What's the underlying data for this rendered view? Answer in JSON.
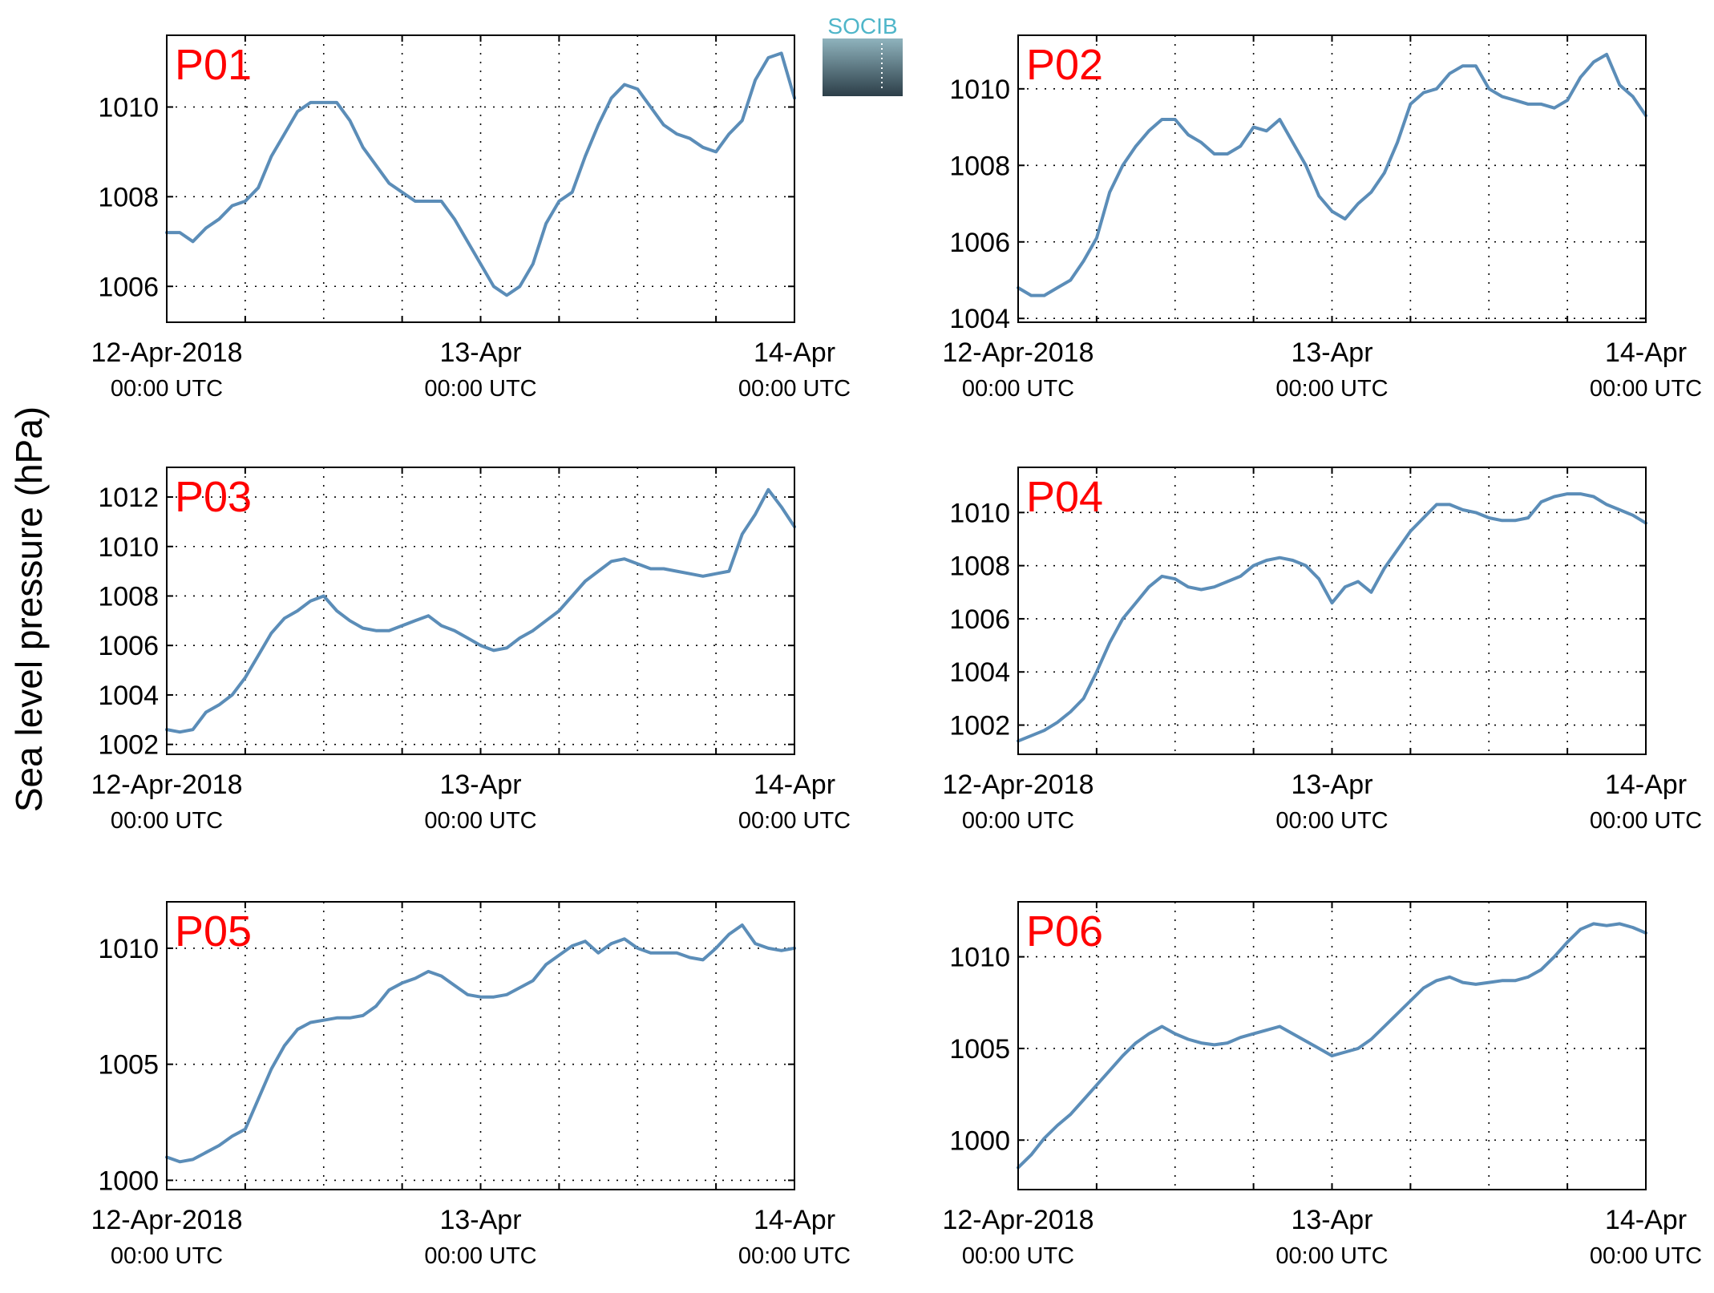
{
  "figure": {
    "ylabel": "Sea level pressure (hPa)",
    "logo_text": "SOCIB"
  },
  "colors": {
    "line": "#5b8db8",
    "station_label": "#ff0000",
    "grid": "#000000",
    "axis": "#000000",
    "logo_text": "#4fb6c9",
    "logo_top": "#8fb3bd",
    "logo_bottom": "#2c3e48"
  },
  "x_ticks": [
    {
      "main": "12-Apr-2018",
      "sub": "00:00 UTC"
    },
    {
      "main": "13-Apr",
      "sub": "00:00 UTC"
    },
    {
      "main": "14-Apr",
      "sub": "00:00 UTC"
    }
  ],
  "chart_data": [
    {
      "type": "line",
      "title": "P01",
      "xlabel": "",
      "ylabel": "Sea level pressure (hPa)",
      "xlim": [
        "2018-04-12 00:00",
        "2018-04-14 00:00"
      ],
      "ylim": [
        1005.2,
        1011.6
      ],
      "yticks": [
        1006,
        1008,
        1010
      ],
      "grid": true,
      "x_hours": [
        0,
        1,
        2,
        3,
        4,
        5,
        6,
        7,
        8,
        9,
        10,
        11,
        12,
        13,
        14,
        15,
        16,
        17,
        18,
        19,
        20,
        21,
        22,
        23,
        24,
        25,
        26,
        27,
        28,
        29,
        30,
        31,
        32,
        33,
        34,
        35,
        36,
        37,
        38,
        39,
        40,
        41,
        42,
        43,
        44,
        45,
        46,
        47,
        48
      ],
      "values": [
        1007.2,
        1007.2,
        1007.0,
        1007.3,
        1007.5,
        1007.8,
        1007.9,
        1008.2,
        1008.9,
        1009.4,
        1009.9,
        1010.1,
        1010.1,
        1010.1,
        1009.7,
        1009.1,
        1008.7,
        1008.3,
        1008.1,
        1007.9,
        1007.9,
        1007.9,
        1007.5,
        1007.0,
        1006.5,
        1006.0,
        1005.8,
        1006.0,
        1006.5,
        1007.4,
        1007.9,
        1008.1,
        1008.9,
        1009.6,
        1010.2,
        1010.5,
        1010.4,
        1010.0,
        1009.6,
        1009.4,
        1009.3,
        1009.1,
        1009.0,
        1009.4,
        1009.7,
        1010.6,
        1011.1,
        1011.2,
        1010.2
      ]
    },
    {
      "type": "line",
      "title": "P02",
      "xlabel": "",
      "ylabel": "Sea level pressure (hPa)",
      "xlim": [
        "2018-04-12 00:00",
        "2018-04-14 00:00"
      ],
      "ylim": [
        1003.9,
        1011.4
      ],
      "yticks": [
        1004,
        1006,
        1008,
        1010
      ],
      "grid": true,
      "x_hours": [
        0,
        1,
        2,
        3,
        4,
        5,
        6,
        7,
        8,
        9,
        10,
        11,
        12,
        13,
        14,
        15,
        16,
        17,
        18,
        19,
        20,
        21,
        22,
        23,
        24,
        25,
        26,
        27,
        28,
        29,
        30,
        31,
        32,
        33,
        34,
        35,
        36,
        37,
        38,
        39,
        40,
        41,
        42,
        43,
        44,
        45,
        46,
        47,
        48
      ],
      "values": [
        1004.8,
        1004.6,
        1004.6,
        1004.8,
        1005.0,
        1005.5,
        1006.1,
        1007.3,
        1008.0,
        1008.5,
        1008.9,
        1009.2,
        1009.2,
        1008.8,
        1008.6,
        1008.3,
        1008.3,
        1008.5,
        1009.0,
        1008.9,
        1009.2,
        1008.6,
        1008.0,
        1007.2,
        1006.8,
        1006.6,
        1007.0,
        1007.3,
        1007.8,
        1008.6,
        1009.6,
        1009.9,
        1010.0,
        1010.4,
        1010.6,
        1010.6,
        1010.0,
        1009.8,
        1009.7,
        1009.6,
        1009.6,
        1009.5,
        1009.7,
        1010.3,
        1010.7,
        1010.9,
        1010.1,
        1009.8,
        1009.3
      ]
    },
    {
      "type": "line",
      "title": "P03",
      "xlabel": "",
      "ylabel": "Sea level pressure (hPa)",
      "xlim": [
        "2018-04-12 00:00",
        "2018-04-14 00:00"
      ],
      "ylim": [
        1001.6,
        1013.2
      ],
      "yticks": [
        1002,
        1004,
        1006,
        1008,
        1010,
        1012
      ],
      "grid": true,
      "x_hours": [
        0,
        1,
        2,
        3,
        4,
        5,
        6,
        7,
        8,
        9,
        10,
        11,
        12,
        13,
        14,
        15,
        16,
        17,
        18,
        19,
        20,
        21,
        22,
        23,
        24,
        25,
        26,
        27,
        28,
        29,
        30,
        31,
        32,
        33,
        34,
        35,
        36,
        37,
        38,
        39,
        40,
        41,
        42,
        43,
        44,
        45,
        46,
        47,
        48
      ],
      "values": [
        1002.6,
        1002.5,
        1002.6,
        1003.3,
        1003.6,
        1004.0,
        1004.7,
        1005.6,
        1006.5,
        1007.1,
        1007.4,
        1007.8,
        1008.0,
        1007.4,
        1007.0,
        1006.7,
        1006.6,
        1006.6,
        1006.8,
        1007.0,
        1007.2,
        1006.8,
        1006.6,
        1006.3,
        1006.0,
        1005.8,
        1005.9,
        1006.3,
        1006.6,
        1007.0,
        1007.4,
        1008.0,
        1008.6,
        1009.0,
        1009.4,
        1009.5,
        1009.3,
        1009.1,
        1009.1,
        1009.0,
        1008.9,
        1008.8,
        1008.9,
        1009.0,
        1010.5,
        1011.3,
        1012.3,
        1011.6,
        1010.8
      ]
    },
    {
      "type": "line",
      "title": "P04",
      "xlabel": "",
      "ylabel": "Sea level pressure (hPa)",
      "xlim": [
        "2018-04-12 00:00",
        "2018-04-14 00:00"
      ],
      "ylim": [
        1000.9,
        1011.7
      ],
      "yticks": [
        1002,
        1004,
        1006,
        1008,
        1010
      ],
      "grid": true,
      "x_hours": [
        0,
        1,
        2,
        3,
        4,
        5,
        6,
        7,
        8,
        9,
        10,
        11,
        12,
        13,
        14,
        15,
        16,
        17,
        18,
        19,
        20,
        21,
        22,
        23,
        24,
        25,
        26,
        27,
        28,
        29,
        30,
        31,
        32,
        33,
        34,
        35,
        36,
        37,
        38,
        39,
        40,
        41,
        42,
        43,
        44,
        45,
        46,
        47,
        48
      ],
      "values": [
        1001.4,
        1001.6,
        1001.8,
        1002.1,
        1002.5,
        1003.0,
        1004.0,
        1005.1,
        1006.0,
        1006.6,
        1007.2,
        1007.6,
        1007.5,
        1007.2,
        1007.1,
        1007.2,
        1007.4,
        1007.6,
        1008.0,
        1008.2,
        1008.3,
        1008.2,
        1008.0,
        1007.5,
        1006.6,
        1007.2,
        1007.4,
        1007.0,
        1007.9,
        1008.6,
        1009.3,
        1009.8,
        1010.3,
        1010.3,
        1010.1,
        1010.0,
        1009.8,
        1009.7,
        1009.7,
        1009.8,
        1010.4,
        1010.6,
        1010.7,
        1010.7,
        1010.6,
        1010.3,
        1010.1,
        1009.9,
        1009.6
      ]
    },
    {
      "type": "line",
      "title": "P05",
      "xlabel": "",
      "ylabel": "Sea level pressure (hPa)",
      "xlim": [
        "2018-04-12 00:00",
        "2018-04-14 00:00"
      ],
      "ylim": [
        999.6,
        1012.0
      ],
      "yticks": [
        1000,
        1005,
        1010
      ],
      "grid": true,
      "x_hours": [
        0,
        1,
        2,
        3,
        4,
        5,
        6,
        7,
        8,
        9,
        10,
        11,
        12,
        13,
        14,
        15,
        16,
        17,
        18,
        19,
        20,
        21,
        22,
        23,
        24,
        25,
        26,
        27,
        28,
        29,
        30,
        31,
        32,
        33,
        34,
        35,
        36,
        37,
        38,
        39,
        40,
        41,
        42,
        43,
        44,
        45,
        46,
        47,
        48
      ],
      "values": [
        1001.0,
        1000.8,
        1000.9,
        1001.2,
        1001.5,
        1001.9,
        1002.2,
        1003.5,
        1004.8,
        1005.8,
        1006.5,
        1006.8,
        1006.9,
        1007.0,
        1007.0,
        1007.1,
        1007.5,
        1008.2,
        1008.5,
        1008.7,
        1009.0,
        1008.8,
        1008.4,
        1008.0,
        1007.9,
        1007.9,
        1008.0,
        1008.3,
        1008.6,
        1009.3,
        1009.7,
        1010.1,
        1010.3,
        1009.8,
        1010.2,
        1010.4,
        1010.0,
        1009.8,
        1009.8,
        1009.8,
        1009.6,
        1009.5,
        1010.0,
        1010.6,
        1011.0,
        1010.2,
        1010.0,
        1009.9,
        1010.0
      ]
    },
    {
      "type": "line",
      "title": "P06",
      "xlabel": "",
      "ylabel": "Sea level pressure (hPa)",
      "xlim": [
        "2018-04-12 00:00",
        "2018-04-14 00:00"
      ],
      "ylim": [
        997.3,
        1013.0
      ],
      "yticks": [
        1000,
        1005,
        1010
      ],
      "grid": true,
      "x_hours": [
        0,
        1,
        2,
        3,
        4,
        5,
        6,
        7,
        8,
        9,
        10,
        11,
        12,
        13,
        14,
        15,
        16,
        17,
        18,
        19,
        20,
        21,
        22,
        23,
        24,
        25,
        26,
        27,
        28,
        29,
        30,
        31,
        32,
        33,
        34,
        35,
        36,
        37,
        38,
        39,
        40,
        41,
        42,
        43,
        44,
        45,
        46,
        47,
        48
      ],
      "values": [
        998.5,
        999.2,
        1000.1,
        1000.8,
        1001.4,
        1002.2,
        1003.0,
        1003.8,
        1004.6,
        1005.3,
        1005.8,
        1006.2,
        1005.8,
        1005.5,
        1005.3,
        1005.2,
        1005.3,
        1005.6,
        1005.8,
        1006.0,
        1006.2,
        1005.8,
        1005.4,
        1005.0,
        1004.6,
        1004.8,
        1005.0,
        1005.5,
        1006.2,
        1006.9,
        1007.6,
        1008.3,
        1008.7,
        1008.9,
        1008.6,
        1008.5,
        1008.6,
        1008.7,
        1008.7,
        1008.9,
        1009.3,
        1010.0,
        1010.8,
        1011.5,
        1011.8,
        1011.7,
        1011.8,
        1011.6,
        1011.3
      ]
    }
  ]
}
